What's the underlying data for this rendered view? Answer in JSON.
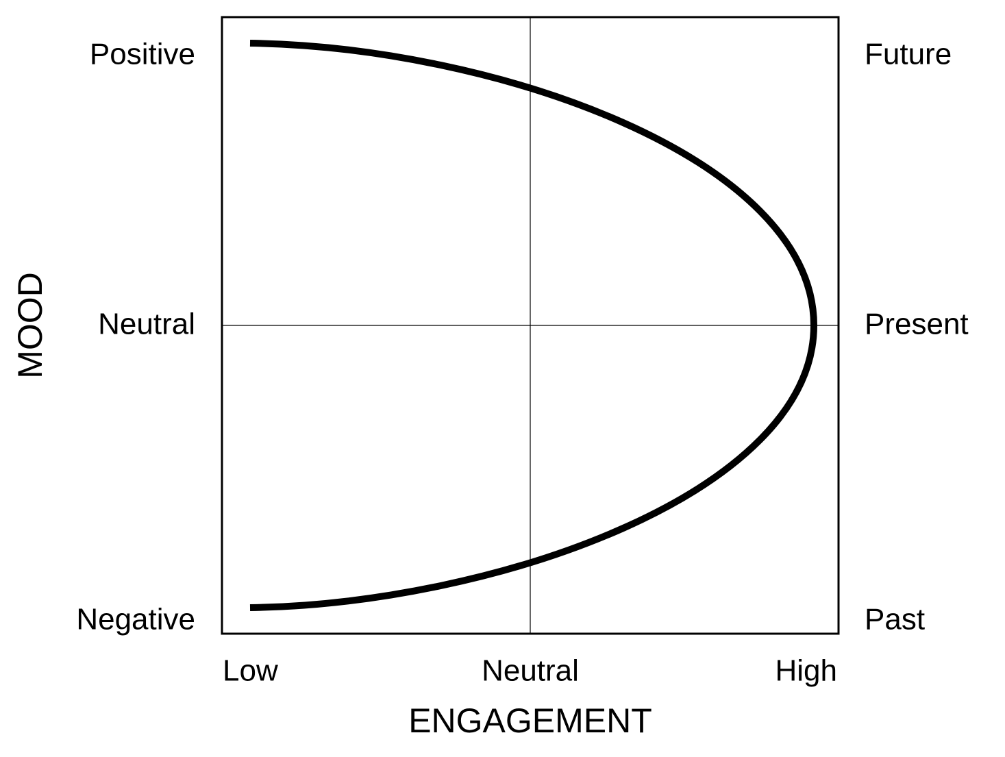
{
  "y_axis": {
    "title": "MOOD",
    "labels": [
      "Positive",
      "Neutral",
      "Negative"
    ]
  },
  "right_axis": {
    "labels": [
      "Future",
      "Present",
      "Past"
    ]
  },
  "x_axis": {
    "title": "ENGAGEMENT",
    "labels": [
      "Low",
      "Neutral",
      "High"
    ]
  }
}
